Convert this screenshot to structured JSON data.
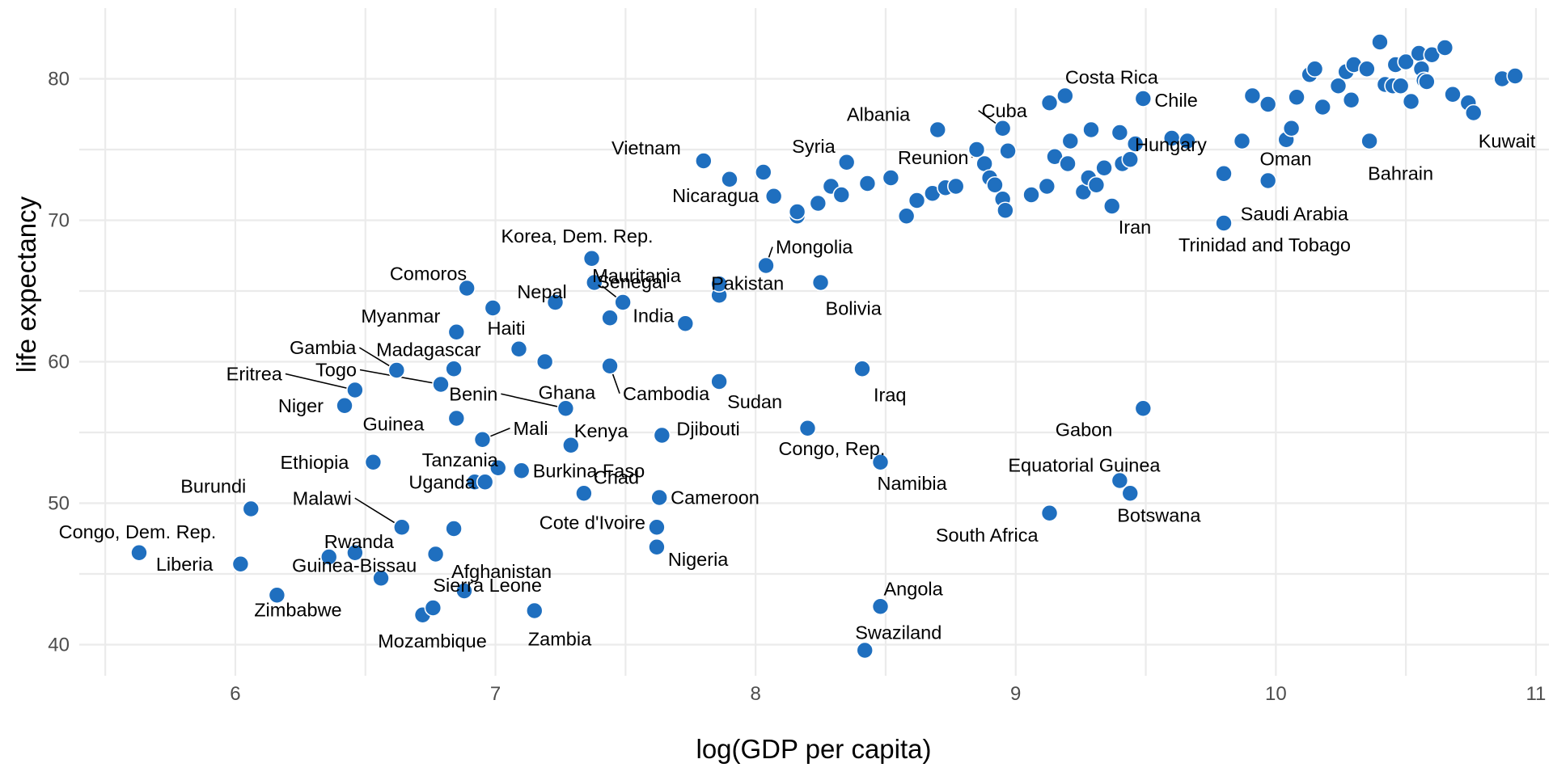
{
  "chart_data": {
    "type": "scatter",
    "title": "",
    "xlabel": "log(GDP per capita)",
    "ylabel": "life expectancy",
    "xlim": [
      5.4,
      11.05
    ],
    "ylim": [
      37.8,
      85.0
    ],
    "xticks": [
      6,
      7,
      8,
      9,
      10,
      11
    ],
    "yticks": [
      40,
      50,
      60,
      70,
      80
    ],
    "xticks_minor": [
      5.5,
      6.5,
      7.5,
      8.5,
      9.5,
      10.5
    ],
    "yticks_minor": [
      45,
      55,
      65,
      75
    ],
    "grid": true,
    "legend": "none",
    "point_color": "#1f6fbf",
    "labeled_points": [
      {
        "label": "Congo, Dem. Rep.",
        "x": 5.63,
        "y": 46.5
      },
      {
        "label": "Liberia",
        "x": 6.02,
        "y": 45.7
      },
      {
        "label": "Burundi",
        "x": 6.06,
        "y": 49.6
      },
      {
        "label": "Zimbabwe",
        "x": 6.16,
        "y": 43.5
      },
      {
        "label": "Rwanda",
        "x": 6.36,
        "y": 46.2
      },
      {
        "label": "Niger",
        "x": 6.42,
        "y": 56.9
      },
      {
        "label": "Eritrea",
        "x": 6.46,
        "y": 58.0
      },
      {
        "label": "Ethiopia",
        "x": 6.53,
        "y": 52.9
      },
      {
        "label": "Guinea-Bissau",
        "x": 6.56,
        "y": 44.7
      },
      {
        "label": "Gambia",
        "x": 6.62,
        "y": 59.4
      },
      {
        "label": "Malawi",
        "x": 6.64,
        "y": 48.3
      },
      {
        "label": "Mozambique",
        "x": 6.72,
        "y": 42.1
      },
      {
        "label": "Sierra Leone",
        "x": 6.76,
        "y": 42.6
      },
      {
        "label": "Togo",
        "x": 6.79,
        "y": 58.4
      },
      {
        "label": "Madagascar",
        "x": 6.84,
        "y": 59.5
      },
      {
        "label": "Myanmar",
        "x": 6.85,
        "y": 62.1
      },
      {
        "label": "Guinea",
        "x": 6.85,
        "y": 56.0
      },
      {
        "label": "Afghanistan",
        "x": 6.88,
        "y": 43.8
      },
      {
        "label": "Comoros",
        "x": 6.89,
        "y": 65.2
      },
      {
        "label": "Mali",
        "x": 6.95,
        "y": 54.5
      },
      {
        "label": "Uganda",
        "x": 6.96,
        "y": 51.5
      },
      {
        "label": "Nepal",
        "x": 6.99,
        "y": 63.8
      },
      {
        "label": "Tanzania",
        "x": 7.01,
        "y": 52.5
      },
      {
        "label": "Haiti",
        "x": 7.09,
        "y": 60.9
      },
      {
        "label": "Burkina Faso",
        "x": 7.1,
        "y": 52.3
      },
      {
        "label": "Zambia",
        "x": 7.15,
        "y": 42.4
      },
      {
        "label": "Ghana",
        "x": 7.19,
        "y": 60.0
      },
      {
        "label": "Benin",
        "x": 7.27,
        "y": 56.7
      },
      {
        "label": "Kenya",
        "x": 7.29,
        "y": 54.1
      },
      {
        "label": "Chad",
        "x": 7.34,
        "y": 50.7
      },
      {
        "label": "Korea, Dem. Rep.",
        "x": 7.37,
        "y": 67.3
      },
      {
        "label": "Senegal",
        "x": 7.44,
        "y": 63.1
      },
      {
        "label": "Cambodia",
        "x": 7.44,
        "y": 59.7
      },
      {
        "label": "Mauritania",
        "x": 7.49,
        "y": 64.2
      },
      {
        "label": "Cote d'Ivoire",
        "x": 7.62,
        "y": 48.3
      },
      {
        "label": "Nigeria",
        "x": 7.62,
        "y": 46.9
      },
      {
        "label": "Cameroon",
        "x": 7.63,
        "y": 50.4
      },
      {
        "label": "Djibouti",
        "x": 7.64,
        "y": 54.8
      },
      {
        "label": "India",
        "x": 7.73,
        "y": 62.7
      },
      {
        "label": "Vietnam",
        "x": 7.8,
        "y": 74.2
      },
      {
        "label": "Pakistan",
        "x": 7.86,
        "y": 65.5
      },
      {
        "label": "Sudan",
        "x": 7.86,
        "y": 58.6
      },
      {
        "label": "Mongolia",
        "x": 8.04,
        "y": 66.8
      },
      {
        "label": "Congo, Rep.",
        "x": 8.2,
        "y": 55.3
      },
      {
        "label": "Bolivia",
        "x": 8.25,
        "y": 65.6
      },
      {
        "label": "Nicaragua",
        "x": 8.33,
        "y": 71.8
      },
      {
        "label": "Syria",
        "x": 8.35,
        "y": 74.1
      },
      {
        "label": "Iraq",
        "x": 8.41,
        "y": 59.5
      },
      {
        "label": "Swaziland",
        "x": 8.42,
        "y": 39.6
      },
      {
        "label": "Angola",
        "x": 8.48,
        "y": 42.7
      },
      {
        "label": "Namibia",
        "x": 8.48,
        "y": 52.9
      },
      {
        "label": "Albania",
        "x": 8.7,
        "y": 76.4
      },
      {
        "label": "Reunion",
        "x": 8.85,
        "y": 75.0
      },
      {
        "label": "Cuba",
        "x": 8.95,
        "y": 76.5
      },
      {
        "label": "South Africa",
        "x": 9.13,
        "y": 49.3
      },
      {
        "label": "Costa Rica",
        "x": 9.19,
        "y": 78.8
      },
      {
        "label": "Iran",
        "x": 9.37,
        "y": 71.0
      },
      {
        "label": "Equatorial Guinea",
        "x": 9.4,
        "y": 51.6
      },
      {
        "label": "Botswana",
        "x": 9.44,
        "y": 50.7
      },
      {
        "label": "Gabon",
        "x": 9.49,
        "y": 56.7
      },
      {
        "label": "Chile",
        "x": 9.49,
        "y": 78.6
      },
      {
        "label": "Trinidad and Tobago",
        "x": 9.8,
        "y": 69.8
      },
      {
        "label": "Hungary",
        "x": 9.8,
        "y": 73.3
      },
      {
        "label": "Oman",
        "x": 9.87,
        "y": 75.6
      },
      {
        "label": "Saudi Arabia",
        "x": 9.97,
        "y": 72.8
      },
      {
        "label": "Bahrain",
        "x": 10.36,
        "y": 75.6
      },
      {
        "label": "Kuwait",
        "x": 10.76,
        "y": 77.6
      }
    ],
    "other_points": [
      {
        "x": 6.46,
        "y": 46.5
      },
      {
        "x": 6.77,
        "y": 46.4
      },
      {
        "x": 6.84,
        "y": 48.2
      },
      {
        "x": 6.92,
        "y": 51.5
      },
      {
        "x": 7.23,
        "y": 64.2
      },
      {
        "x": 7.38,
        "y": 65.6
      },
      {
        "x": 7.86,
        "y": 64.7
      },
      {
        "x": 7.9,
        "y": 72.9
      },
      {
        "x": 8.03,
        "y": 73.4
      },
      {
        "x": 8.07,
        "y": 71.7
      },
      {
        "x": 8.16,
        "y": 70.3
      },
      {
        "x": 8.16,
        "y": 70.6
      },
      {
        "x": 8.24,
        "y": 71.2
      },
      {
        "x": 8.29,
        "y": 72.4
      },
      {
        "x": 8.43,
        "y": 72.6
      },
      {
        "x": 8.52,
        "y": 73.0
      },
      {
        "x": 8.58,
        "y": 70.3
      },
      {
        "x": 8.62,
        "y": 71.4
      },
      {
        "x": 8.68,
        "y": 71.9
      },
      {
        "x": 8.73,
        "y": 72.3
      },
      {
        "x": 8.77,
        "y": 72.4
      },
      {
        "x": 8.88,
        "y": 74.0
      },
      {
        "x": 8.9,
        "y": 73.0
      },
      {
        "x": 8.92,
        "y": 72.5
      },
      {
        "x": 8.95,
        "y": 71.5
      },
      {
        "x": 8.96,
        "y": 70.7
      },
      {
        "x": 8.97,
        "y": 74.9
      },
      {
        "x": 9.06,
        "y": 71.8
      },
      {
        "x": 9.12,
        "y": 72.4
      },
      {
        "x": 9.13,
        "y": 78.3
      },
      {
        "x": 9.15,
        "y": 74.5
      },
      {
        "x": 9.2,
        "y": 74.0
      },
      {
        "x": 9.21,
        "y": 75.6
      },
      {
        "x": 9.26,
        "y": 72.0
      },
      {
        "x": 9.28,
        "y": 73.0
      },
      {
        "x": 9.29,
        "y": 76.4
      },
      {
        "x": 9.31,
        "y": 72.5
      },
      {
        "x": 9.34,
        "y": 73.7
      },
      {
        "x": 9.4,
        "y": 76.2
      },
      {
        "x": 9.41,
        "y": 74.0
      },
      {
        "x": 9.44,
        "y": 74.3
      },
      {
        "x": 9.46,
        "y": 75.4
      },
      {
        "x": 9.6,
        "y": 75.8
      },
      {
        "x": 9.66,
        "y": 75.6
      },
      {
        "x": 9.91,
        "y": 78.8
      },
      {
        "x": 9.97,
        "y": 78.2
      },
      {
        "x": 10.04,
        "y": 75.7
      },
      {
        "x": 10.06,
        "y": 76.5
      },
      {
        "x": 10.08,
        "y": 78.7
      },
      {
        "x": 10.13,
        "y": 80.3
      },
      {
        "x": 10.15,
        "y": 80.7
      },
      {
        "x": 10.18,
        "y": 78.0
      },
      {
        "x": 10.24,
        "y": 79.5
      },
      {
        "x": 10.27,
        "y": 80.5
      },
      {
        "x": 10.29,
        "y": 78.5
      },
      {
        "x": 10.3,
        "y": 81.0
      },
      {
        "x": 10.35,
        "y": 80.7
      },
      {
        "x": 10.4,
        "y": 82.6
      },
      {
        "x": 10.42,
        "y": 79.6
      },
      {
        "x": 10.45,
        "y": 79.5
      },
      {
        "x": 10.46,
        "y": 81.0
      },
      {
        "x": 10.48,
        "y": 79.5
      },
      {
        "x": 10.5,
        "y": 81.2
      },
      {
        "x": 10.52,
        "y": 78.4
      },
      {
        "x": 10.55,
        "y": 81.8
      },
      {
        "x": 10.56,
        "y": 80.7
      },
      {
        "x": 10.57,
        "y": 79.9
      },
      {
        "x": 10.58,
        "y": 79.8
      },
      {
        "x": 10.6,
        "y": 81.7
      },
      {
        "x": 10.65,
        "y": 82.2
      },
      {
        "x": 10.68,
        "y": 78.9
      },
      {
        "x": 10.74,
        "y": 78.3
      },
      {
        "x": 10.87,
        "y": 80.0
      },
      {
        "x": 10.92,
        "y": 80.2
      }
    ]
  }
}
